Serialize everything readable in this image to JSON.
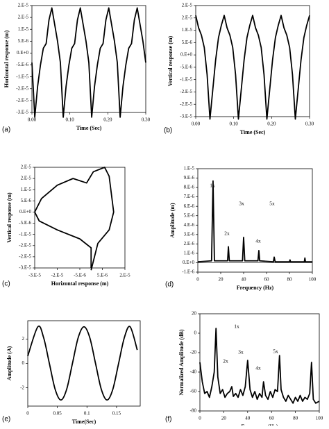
{
  "chart_data": [
    {
      "type": "line",
      "panel_label": "(a)",
      "x_label": "Time (Sec)",
      "y_label": "Horizontal response (m)",
      "color": "#000000",
      "x": [
        0,
        0.0075,
        0.015,
        0.0225,
        0.03,
        0.0375,
        0.045,
        0.0525,
        0.06,
        0.0675,
        0.075,
        0.0825,
        0.09,
        0.0975,
        0.105,
        0.1125,
        0.12,
        0.1275,
        0.135,
        0.1425,
        0.15,
        0.1575,
        0.165,
        0.1725,
        0.18,
        0.1875,
        0.195,
        0.2025,
        0.21,
        0.2175,
        0.225,
        0.2325,
        0.24,
        0.2475,
        0.255,
        0.2625,
        0.27,
        0.2775,
        0.285,
        0.2925,
        0.3
      ],
      "values": [
        -4e-06,
        -2.7e-05,
        -1.4e-05,
        -5e-06,
        2e-06,
        4e-06,
        1.4e-05,
        1.9e-05,
        1.2e-05,
        5e-06,
        -4e-06,
        -2.7e-05,
        -1.4e-05,
        -5e-06,
        2e-06,
        4e-06,
        1.4e-05,
        1.9e-05,
        1.2e-05,
        5e-06,
        -4e-06,
        -2.7e-05,
        -1.4e-05,
        -5e-06,
        2e-06,
        4e-06,
        1.4e-05,
        1.9e-05,
        1.2e-05,
        5e-06,
        -4e-06,
        -2.7e-05,
        -1.4e-05,
        -5e-06,
        2e-06,
        4e-06,
        1.4e-05,
        1.9e-05,
        1.2e-05,
        5e-06,
        -4e-06
      ],
      "xlim": [
        0,
        0.3
      ],
      "ylim": [
        -2.5e-05,
        2e-05
      ],
      "xticks": [
        {
          "value": 0,
          "label": "0.00"
        },
        {
          "value": 0.1,
          "label": "0.10"
        },
        {
          "value": 0.2,
          "label": "0.20"
        },
        {
          "value": 0.3,
          "label": "0.30"
        }
      ],
      "yticks": [
        {
          "value": 2e-05,
          "label": "2.E-5"
        },
        {
          "value": 1.5e-05,
          "label": "2.E-5"
        },
        {
          "value": 1e-05,
          "label": "1.E-5"
        },
        {
          "value": 5e-06,
          "label": "5.E-6"
        },
        {
          "value": 0,
          "label": "0.E+0"
        },
        {
          "value": -5e-06,
          "label": "-5.E-6"
        },
        {
          "value": -1e-05,
          "label": "-1.E-5"
        },
        {
          "value": -1.5e-05,
          "label": "-2.E-5"
        },
        {
          "value": -2e-05,
          "label": "-2.E-5"
        },
        {
          "value": -2.5e-05,
          "label": "-3.E-5"
        }
      ]
    },
    {
      "type": "line",
      "panel_label": "(b)",
      "x_label": "Time (Sec)",
      "y_label": "Vertical response (m)",
      "color": "#000000",
      "x": [
        0,
        0.0075,
        0.015,
        0.0225,
        0.03,
        0.0375,
        0.045,
        0.0525,
        0.06,
        0.0675,
        0.075,
        0.0825,
        0.09,
        0.0975,
        0.105,
        0.1125,
        0.12,
        0.1275,
        0.135,
        0.1425,
        0.15,
        0.1575,
        0.165,
        0.1725,
        0.18,
        0.1875,
        0.195,
        0.2025,
        0.21,
        0.2175,
        0.225,
        0.2325,
        0.24,
        0.2475,
        0.255,
        0.2625,
        0.27,
        0.2775,
        0.285,
        0.2925,
        0.3
      ],
      "values": [
        1.6e-05,
        1.1e-05,
        8e-06,
        3e-06,
        -8e-06,
        -2.6e-05,
        -1.4e-05,
        -2e-06,
        7e-06,
        1.2e-05,
        1.6e-05,
        1.1e-05,
        8e-06,
        3e-06,
        -8e-06,
        -2.6e-05,
        -1.4e-05,
        -2e-06,
        7e-06,
        1.2e-05,
        1.6e-05,
        1.1e-05,
        8e-06,
        3e-06,
        -8e-06,
        -2.6e-05,
        -1.4e-05,
        -2e-06,
        7e-06,
        1.2e-05,
        1.6e-05,
        1.1e-05,
        8e-06,
        3e-06,
        -8e-06,
        -2.6e-05,
        -1.4e-05,
        -2e-06,
        7e-06,
        1.2e-05,
        1.6e-05
      ],
      "xlim": [
        0,
        0.3
      ],
      "ylim": [
        -2.5e-05,
        2e-05
      ],
      "xticks": [
        {
          "value": 0,
          "label": "0.00"
        },
        {
          "value": 0.1,
          "label": "0.10"
        },
        {
          "value": 0.2,
          "label": "0.20"
        },
        {
          "value": 0.3,
          "label": "0.30"
        }
      ],
      "yticks": [
        {
          "value": 2e-05,
          "label": "2.E-5"
        },
        {
          "value": 1.5e-05,
          "label": "2.E-5"
        },
        {
          "value": 1e-05,
          "label": "1.E-5"
        },
        {
          "value": 5e-06,
          "label": "5.E-6"
        },
        {
          "value": 0,
          "label": "0.E+0"
        },
        {
          "value": -5e-06,
          "label": "-5.E-6"
        },
        {
          "value": -1e-05,
          "label": "-1.E-5"
        },
        {
          "value": -1.5e-05,
          "label": "-2.E-5"
        },
        {
          "value": -2e-05,
          "label": "-2.E-5"
        },
        {
          "value": -2.5e-05,
          "label": "-3.E-5"
        }
      ]
    },
    {
      "type": "line",
      "panel_label": "(c)",
      "x_label": "Horizontal response (m)",
      "y_label": "Vertical response (m)",
      "color": "#000000",
      "x": [
        0,
        0,
        -5e-06,
        -1.5e-05,
        -2.3e-05,
        -2.5e-05,
        -2.2e-05,
        -1.5e-05,
        -8e-06,
        -2e-06,
        1e-06,
        6e-06,
        8e-06,
        9e-06,
        1e-05,
        8e-06,
        3e-06,
        0
      ],
      "values": [
        -2.5e-05,
        -1.6e-05,
        -1.2e-05,
        -8e-06,
        -4e-06,
        0,
        6e-06,
        1.2e-05,
        1.5e-05,
        1.3e-05,
        1.8e-05,
        2e-05,
        1.6e-05,
        8e-06,
        0,
        -8e-06,
        -1.4e-05,
        -2.6e-05
      ],
      "xlim": [
        -2.5e-05,
        1.5e-05
      ],
      "ylim": [
        -2.5e-05,
        2e-05
      ],
      "xticks": [
        {
          "value": -2.5e-05,
          "label": "-3.E-5"
        },
        {
          "value": -1.5e-05,
          "label": "-2.E-5"
        },
        {
          "value": -5e-06,
          "label": "-5.E-6"
        },
        {
          "value": 5e-06,
          "label": "5.E-6"
        },
        {
          "value": 1.5e-05,
          "label": "2.E-5"
        }
      ],
      "yticks": [
        {
          "value": 2e-05,
          "label": "2.E-5"
        },
        {
          "value": 1.5e-05,
          "label": "2.E-5"
        },
        {
          "value": 1e-05,
          "label": "1.E-5"
        },
        {
          "value": 5e-06,
          "label": "5.E-6"
        },
        {
          "value": 0,
          "label": "0.E+0"
        },
        {
          "value": -5e-06,
          "label": "-5.E-6"
        },
        {
          "value": -1e-05,
          "label": "-1.E-5"
        },
        {
          "value": -1.5e-05,
          "label": "-2.E-5"
        },
        {
          "value": -2e-05,
          "label": "-2.E-5"
        },
        {
          "value": -2.5e-05,
          "label": "-3.E-5"
        }
      ]
    },
    {
      "type": "line",
      "panel_label": "(d)",
      "x_label": "Frequency (Hz)",
      "y_label": "Amplitude (m)",
      "color": "#000000",
      "annotations": [
        "1x",
        "2x",
        "3x",
        "4x",
        "5x"
      ],
      "x": [
        0,
        12,
        13.3,
        14.5,
        26,
        26.7,
        27.5,
        39,
        40,
        41,
        52.5,
        53.3,
        54,
        66,
        66.7,
        67.5,
        80,
        80.5,
        81,
        93,
        93.5,
        94,
        100
      ],
      "values": [
        1e-07,
        2e-07,
        8.7e-06,
        2e-07,
        2e-07,
        1.7e-06,
        2e-07,
        2e-07,
        2.7e-06,
        2e-07,
        2e-07,
        1.3e-06,
        2e-07,
        1e-07,
        6e-07,
        1e-07,
        1e-07,
        3e-07,
        1e-07,
        1e-07,
        5e-07,
        1e-07,
        1e-07
      ],
      "xlim": [
        0,
        100
      ],
      "ylim": [
        -1e-06,
        1e-05
      ],
      "xticks": [
        0,
        20,
        40,
        60,
        80,
        100
      ],
      "yticks": [
        {
          "value": 1e-05,
          "label": "1.E-5"
        },
        {
          "value": 9e-06,
          "label": "9.E-6"
        },
        {
          "value": 8e-06,
          "label": "8.E-6"
        },
        {
          "value": 7e-06,
          "label": "7.E-6"
        },
        {
          "value": 6e-06,
          "label": "6.E-6"
        },
        {
          "value": 5e-06,
          "label": "5.E-6"
        },
        {
          "value": 4e-06,
          "label": "4.E-6"
        },
        {
          "value": 3e-06,
          "label": "3.E-6"
        },
        {
          "value": 2e-06,
          "label": "2.E-6"
        },
        {
          "value": 1e-06,
          "label": "1.E-6"
        },
        {
          "value": 0,
          "label": "0.E+0"
        },
        {
          "value": -1e-06,
          "label": "-1.E-6"
        }
      ]
    },
    {
      "type": "line",
      "panel_label": "(e)",
      "x_label": "Time(Sec)",
      "y_label": "Amplitude (A)",
      "color": "#000000",
      "smooth": true,
      "x": [
        0,
        0.017,
        0.02675,
        0.0365,
        0.04625,
        0.056,
        0.06575,
        0.0755,
        0.08525,
        0.095,
        0.10475,
        0.1145,
        0.12425,
        0.134,
        0.14375,
        0.1535,
        0.16325,
        0.173,
        0.185
      ],
      "values": [
        0.6,
        3,
        2.12,
        0,
        -2.12,
        -3,
        -2.12,
        0,
        2.12,
        3,
        2.12,
        0,
        -2.12,
        -3,
        -2.12,
        0,
        2.12,
        3,
        1.1
      ],
      "xlim": [
        0,
        0.19
      ],
      "ylim": [
        -3.5,
        3.5
      ],
      "xticks": [
        0,
        0.05,
        0.1,
        0.15
      ],
      "yticks": [
        -2,
        0,
        2
      ]
    },
    {
      "type": "line",
      "panel_label": "(f)",
      "x_label": "Frequency (Hz)",
      "y_label": "Normalized Amplitude (dB)",
      "color": "#000000",
      "annotations": [
        "1x",
        "2x",
        "3x",
        "4x",
        "5x"
      ],
      "x": [
        0,
        2,
        4,
        6,
        8,
        10,
        12,
        13.5,
        15,
        17,
        19,
        21,
        23,
        25,
        26.7,
        28,
        30,
        32,
        34,
        36,
        38,
        40,
        42,
        44,
        46,
        48,
        50,
        52,
        53.3,
        55,
        57,
        59,
        61,
        63,
        65,
        66.7,
        68,
        70,
        72,
        74,
        76,
        78,
        80,
        82,
        84,
        86,
        88,
        90,
        92,
        93.5,
        95,
        97,
        100
      ],
      "values": [
        -30,
        -50,
        -62,
        -60,
        -66,
        -55,
        -40,
        5,
        -45,
        -62,
        -58,
        -66,
        -62,
        -60,
        -55,
        -65,
        -62,
        -66,
        -58,
        -64,
        -55,
        -28,
        -58,
        -66,
        -60,
        -68,
        -62,
        -66,
        -50,
        -64,
        -68,
        -60,
        -66,
        -58,
        -60,
        -23,
        -58,
        -66,
        -70,
        -64,
        -68,
        -72,
        -66,
        -70,
        -64,
        -70,
        -66,
        -68,
        -62,
        -30,
        -68,
        -72,
        -70
      ],
      "xlim": [
        0,
        100
      ],
      "ylim": [
        -80,
        20
      ],
      "xticks": [
        0,
        20,
        40,
        60,
        80,
        100
      ],
      "yticks": [
        20,
        0,
        -20,
        -40,
        -60,
        -80
      ]
    }
  ]
}
